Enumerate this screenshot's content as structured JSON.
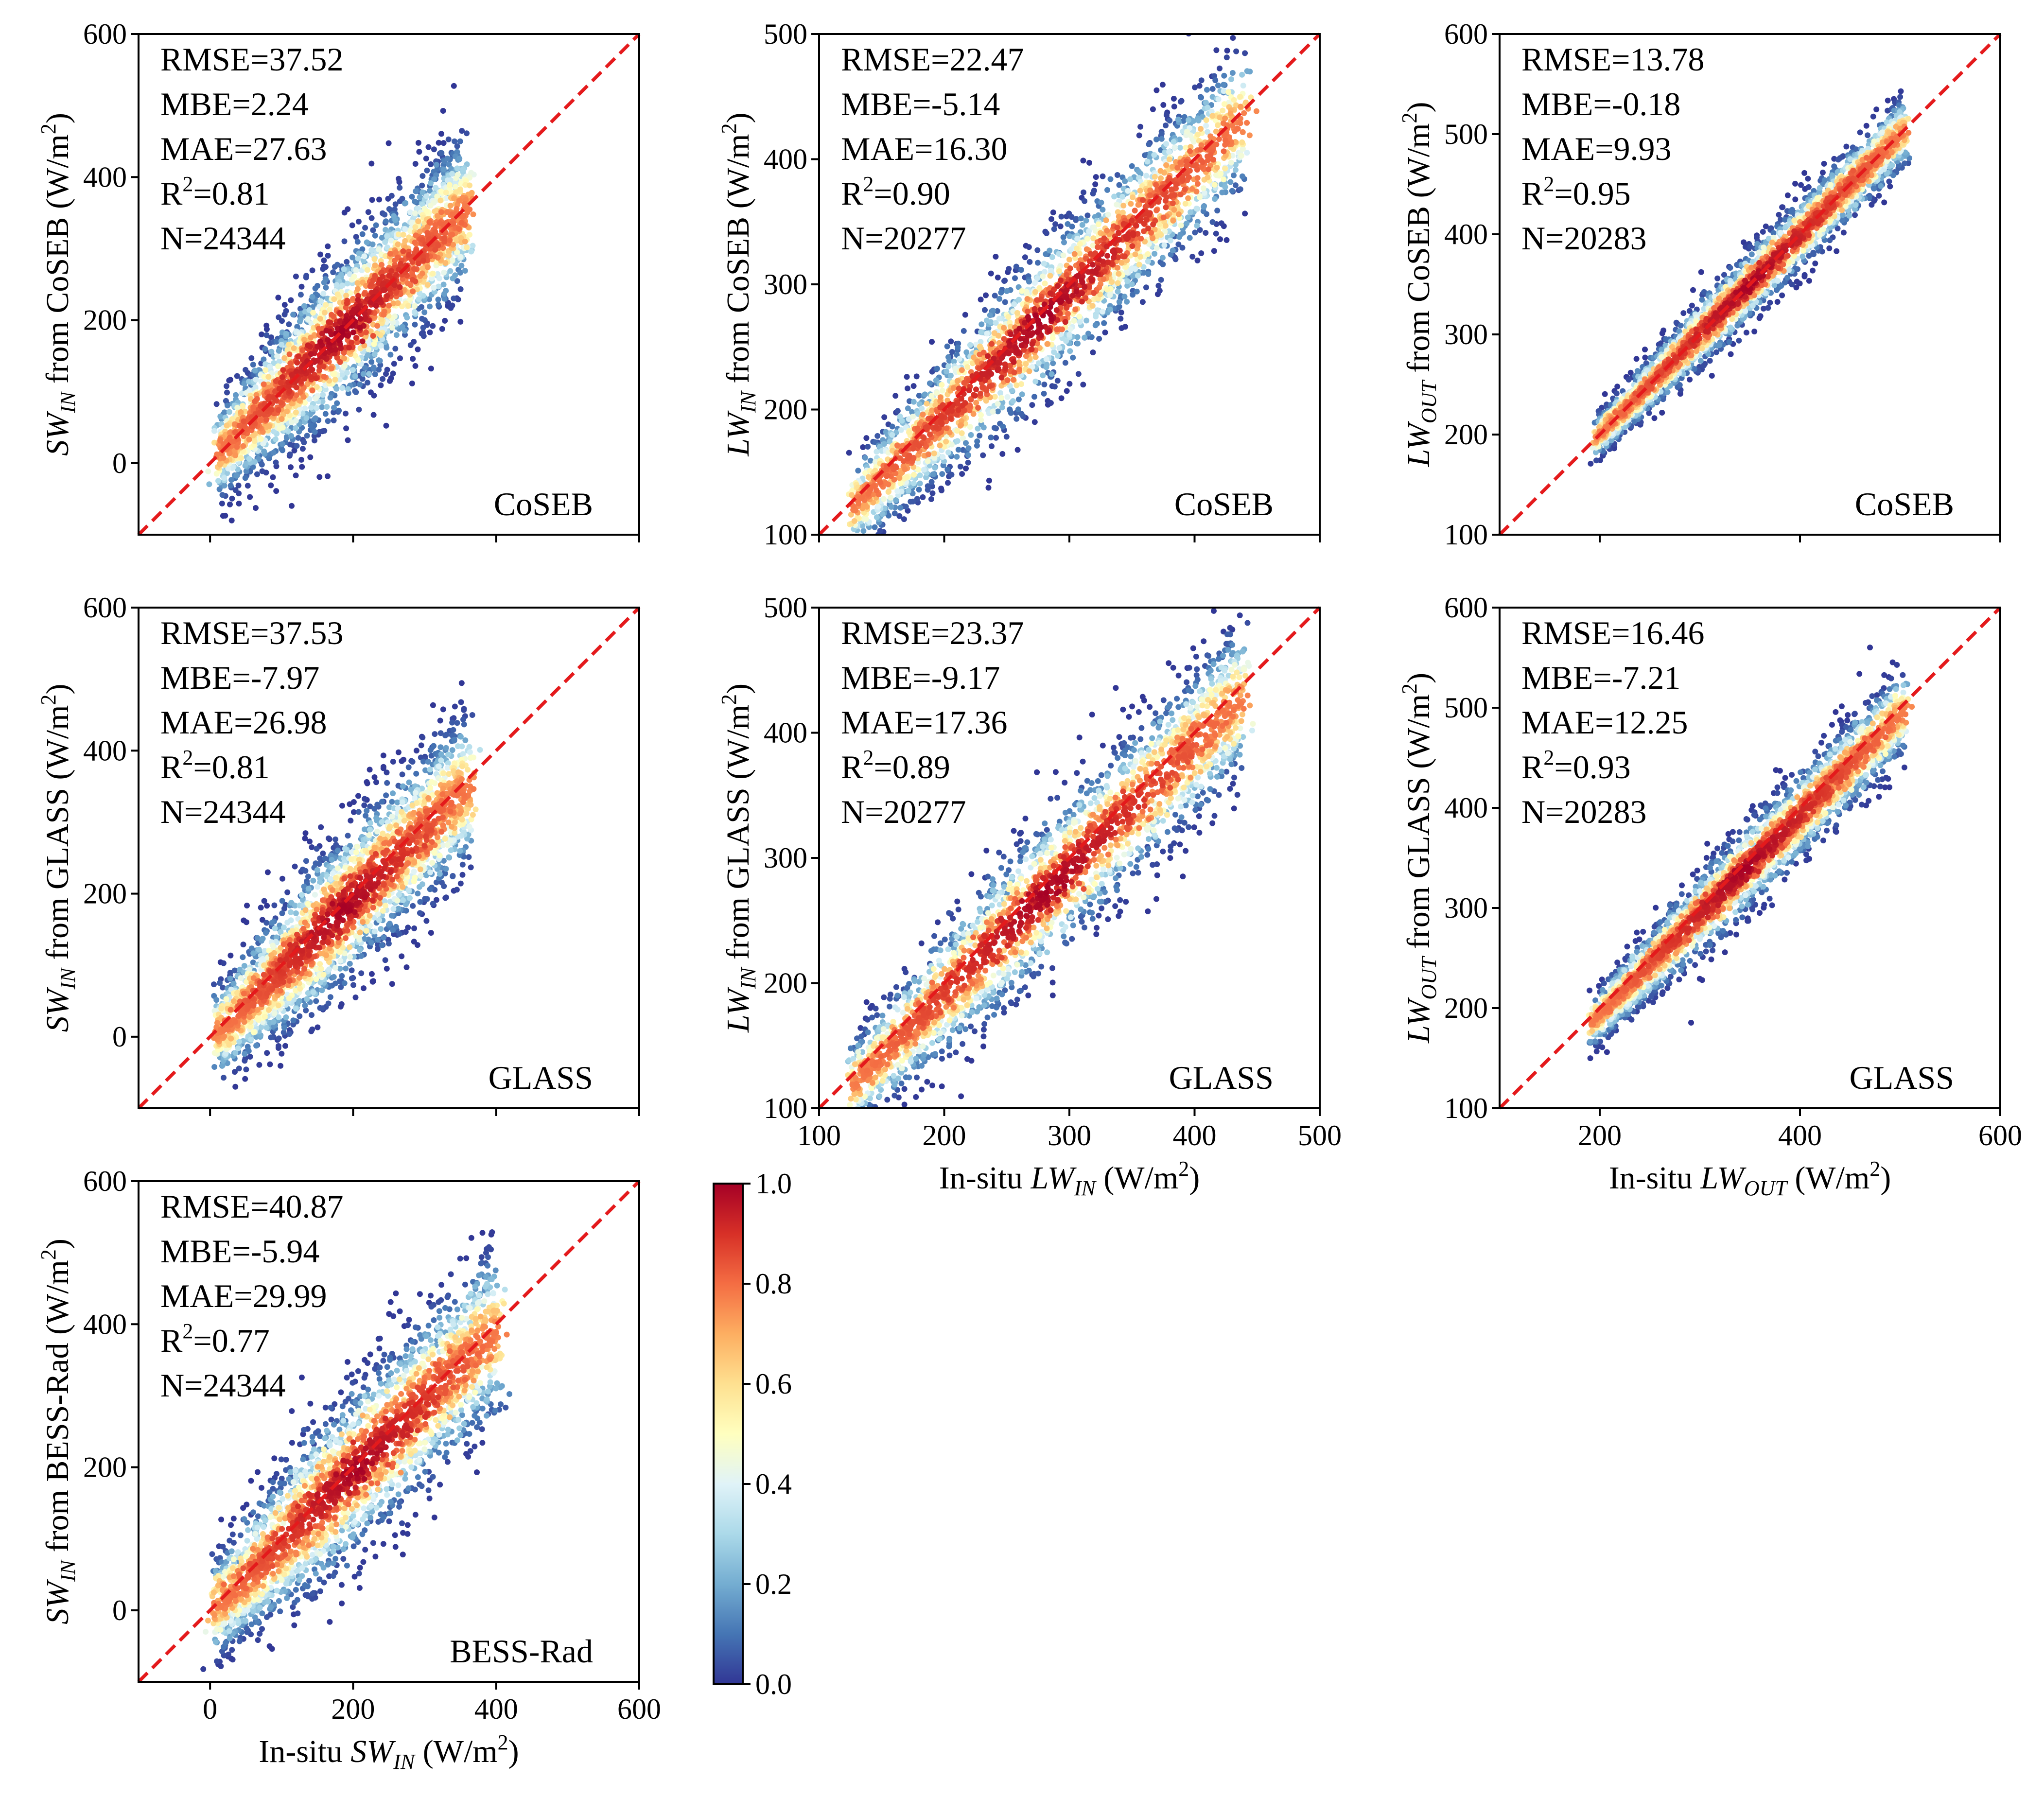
{
  "figure": {
    "colorbar": {
      "ticks": [
        "0.0",
        "0.2",
        "0.4",
        "0.6",
        "0.8",
        "1.0"
      ],
      "vmin": 0,
      "vmax": 1,
      "colormap": [
        "#313695",
        "#4575b4",
        "#74add1",
        "#abd9e9",
        "#e0f3f8",
        "#ffffbf",
        "#fee090",
        "#fdae61",
        "#f46d43",
        "#d73027",
        "#a50026"
      ]
    },
    "line_color": "#e41a1c"
  },
  "chart_data": [
    {
      "type": "scatter",
      "row": 0,
      "col": 0,
      "product": "CoSEB",
      "variable": "SW_IN",
      "ylabel_main": "SW",
      "ylabel_sub": "IN",
      "ylabel_rest": " from CoSEB (W/m",
      "ylabel_sup": "2",
      "ylabel_end": ")",
      "xlabel_visible": false,
      "xlim": [
        -100,
        600
      ],
      "ylim": [
        -100,
        600
      ],
      "xticks": [
        0,
        200,
        400,
        600
      ],
      "yticks": [
        0,
        200,
        400,
        600
      ],
      "show_xticklabels": false,
      "stats": {
        "rmse": "RMSE=37.52",
        "mbe": "MBE=2.24",
        "mae": "MAE=27.63",
        "r2_value": "=0.81",
        "n": "N=24344"
      },
      "cloud": {
        "min": 10,
        "max": 360,
        "spread": 55,
        "bias": 0
      }
    },
    {
      "type": "scatter",
      "row": 0,
      "col": 1,
      "product": "CoSEB",
      "variable": "LW_IN",
      "ylabel_main": "LW",
      "ylabel_sub": "IN",
      "ylabel_rest": " from CoSEB (W/m",
      "ylabel_sup": "2",
      "ylabel_end": ")",
      "xlabel_visible": false,
      "xlim": [
        100,
        500
      ],
      "ylim": [
        100,
        500
      ],
      "xticks": [
        100,
        200,
        300,
        400,
        500
      ],
      "yticks": [
        100,
        200,
        300,
        400,
        500
      ],
      "show_xticklabels": false,
      "stats": {
        "rmse": "RMSE=22.47",
        "mbe": "MBE=-5.14",
        "mae": "MAE=16.30",
        "r2_value": "=0.90",
        "n": "N=20277"
      },
      "cloud": {
        "min": 125,
        "max": 440,
        "spread": 30,
        "bias": -6
      }
    },
    {
      "type": "scatter",
      "row": 0,
      "col": 2,
      "product": "CoSEB",
      "variable": "LW_OUT",
      "ylabel_main": "LW",
      "ylabel_sub": "OUT",
      "ylabel_rest": " from CoSEB (W/m",
      "ylabel_sup": "2",
      "ylabel_end": ")",
      "xlabel_visible": false,
      "xlim": [
        100,
        600
      ],
      "ylim": [
        100,
        600
      ],
      "xticks": [
        200,
        400,
        600
      ],
      "yticks": [
        100,
        200,
        300,
        400,
        500,
        600
      ],
      "show_xticklabels": false,
      "stats": {
        "rmse": "RMSE=13.78",
        "mbe": "MBE=-0.18",
        "mae": "MAE=9.93",
        "r2_value": "=0.95",
        "n": "N=20283"
      },
      "cloud": {
        "min": 195,
        "max": 505,
        "spread": 18,
        "bias": 0
      }
    },
    {
      "type": "scatter",
      "row": 1,
      "col": 0,
      "product": "GLASS",
      "variable": "SW_IN",
      "ylabel_main": "SW",
      "ylabel_sub": "IN",
      "ylabel_rest": " from GLASS (W/m",
      "ylabel_sup": "2",
      "ylabel_end": ")",
      "xlabel_visible": false,
      "xlim": [
        -100,
        600
      ],
      "ylim": [
        -100,
        600
      ],
      "xticks": [
        0,
        200,
        400,
        600
      ],
      "yticks": [
        0,
        200,
        400,
        600
      ],
      "show_xticklabels": false,
      "stats": {
        "rmse": "RMSE=37.53",
        "mbe": "MBE=-7.97",
        "mae": "MAE=26.98",
        "r2_value": "=0.81",
        "n": "N=24344"
      },
      "cloud": {
        "min": 10,
        "max": 360,
        "spread": 55,
        "bias": -8
      }
    },
    {
      "type": "scatter",
      "row": 1,
      "col": 1,
      "product": "GLASS",
      "variable": "LW_IN",
      "ylabel_main": "LW",
      "ylabel_sub": "IN",
      "ylabel_rest": " from GLASS (W/m",
      "ylabel_sup": "2",
      "ylabel_end": ")",
      "xlabel_visible": true,
      "xlabel_pre": "In-situ ",
      "xlabel_main": "LW",
      "xlabel_sub": "IN",
      "xlabel_rest": " (W/m",
      "xlabel_sup": "2",
      "xlabel_end": ")",
      "xlim": [
        100,
        500
      ],
      "ylim": [
        100,
        500
      ],
      "xticks": [
        100,
        200,
        300,
        400,
        500
      ],
      "yticks": [
        100,
        200,
        300,
        400,
        500
      ],
      "show_xticklabels": true,
      "stats": {
        "rmse": "RMSE=23.37",
        "mbe": "MBE=-9.17",
        "mae": "MAE=17.36",
        "r2_value": "=0.89",
        "n": "N=20277"
      },
      "cloud": {
        "min": 125,
        "max": 440,
        "spread": 30,
        "bias": -9
      }
    },
    {
      "type": "scatter",
      "row": 1,
      "col": 2,
      "product": "GLASS",
      "variable": "LW_OUT",
      "ylabel_main": "LW",
      "ylabel_sub": "OUT",
      "ylabel_rest": " from GLASS (W/m",
      "ylabel_sup": "2",
      "ylabel_end": ")",
      "xlabel_visible": true,
      "xlabel_pre": "In-situ ",
      "xlabel_main": "LW",
      "xlabel_sub": "OUT",
      "xlabel_rest": " (W/m",
      "xlabel_sup": "2",
      "xlabel_end": ")",
      "xlim": [
        100,
        600
      ],
      "ylim": [
        100,
        600
      ],
      "xticks": [
        200,
        400,
        600
      ],
      "yticks": [
        100,
        200,
        300,
        400,
        500,
        600
      ],
      "show_xticklabels": true,
      "stats": {
        "rmse": "RMSE=16.46",
        "mbe": "MBE=-7.21",
        "mae": "MAE=12.25",
        "r2_value": "=0.93",
        "n": "N=20283"
      },
      "cloud": {
        "min": 190,
        "max": 505,
        "spread": 22,
        "bias": -7
      }
    },
    {
      "type": "scatter",
      "row": 2,
      "col": 0,
      "product": "BESS-Rad",
      "variable": "SW_IN",
      "ylabel_main": "SW",
      "ylabel_sub": "IN",
      "ylabel_rest": " from BESS-Rad (W/m",
      "ylabel_sup": "2",
      "ylabel_end": ")",
      "xlabel_visible": true,
      "xlabel_pre": "In-situ ",
      "xlabel_main": "SW",
      "xlabel_sub": "IN",
      "xlabel_rest": " (W/m",
      "xlabel_sup": "2",
      "xlabel_end": ")",
      "xlim": [
        -100,
        600
      ],
      "ylim": [
        -100,
        600
      ],
      "xticks": [
        0,
        200,
        400,
        600
      ],
      "yticks": [
        0,
        200,
        400,
        600
      ],
      "show_xticklabels": true,
      "stats": {
        "rmse": "RMSE=40.87",
        "mbe": "MBE=-5.94",
        "mae": "MAE=29.99",
        "r2_value": "=0.77",
        "n": "N=24344"
      },
      "cloud": {
        "min": 5,
        "max": 400,
        "spread": 60,
        "bias": -6
      }
    }
  ]
}
